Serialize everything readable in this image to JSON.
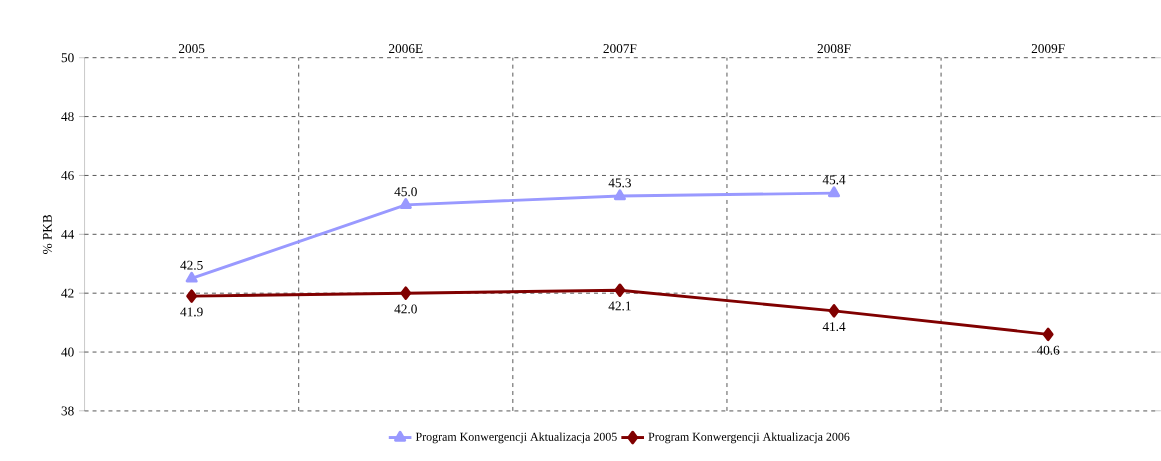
{
  "chart_data": {
    "type": "line",
    "ylabel": "% PKB",
    "categories": [
      "2005",
      "2006E",
      "2007F",
      "2008F",
      "2009F"
    ],
    "ylim": [
      38,
      50
    ],
    "yticks": [
      38,
      40,
      42,
      44,
      46,
      48,
      50
    ],
    "grid": true,
    "legend": "bottom",
    "line_style": "solid",
    "series": [
      {
        "name": "Program Konwergencji Aktualizacja 2005",
        "color": "#9999ff",
        "marker": "triangle",
        "values": [
          42.5,
          45.0,
          45.3,
          45.4,
          null
        ],
        "value_labels": [
          "42.5",
          "45.0",
          "45.3",
          "45.4",
          null
        ]
      },
      {
        "name": "Program Konwergencji Aktualizacja 2006",
        "color": "#800000",
        "marker": "diamond",
        "values": [
          41.9,
          42.0,
          42.1,
          41.4,
          40.6
        ],
        "value_labels": [
          "41.9",
          "42.0",
          "42.1",
          "41.4",
          "40.6"
        ]
      }
    ]
  }
}
